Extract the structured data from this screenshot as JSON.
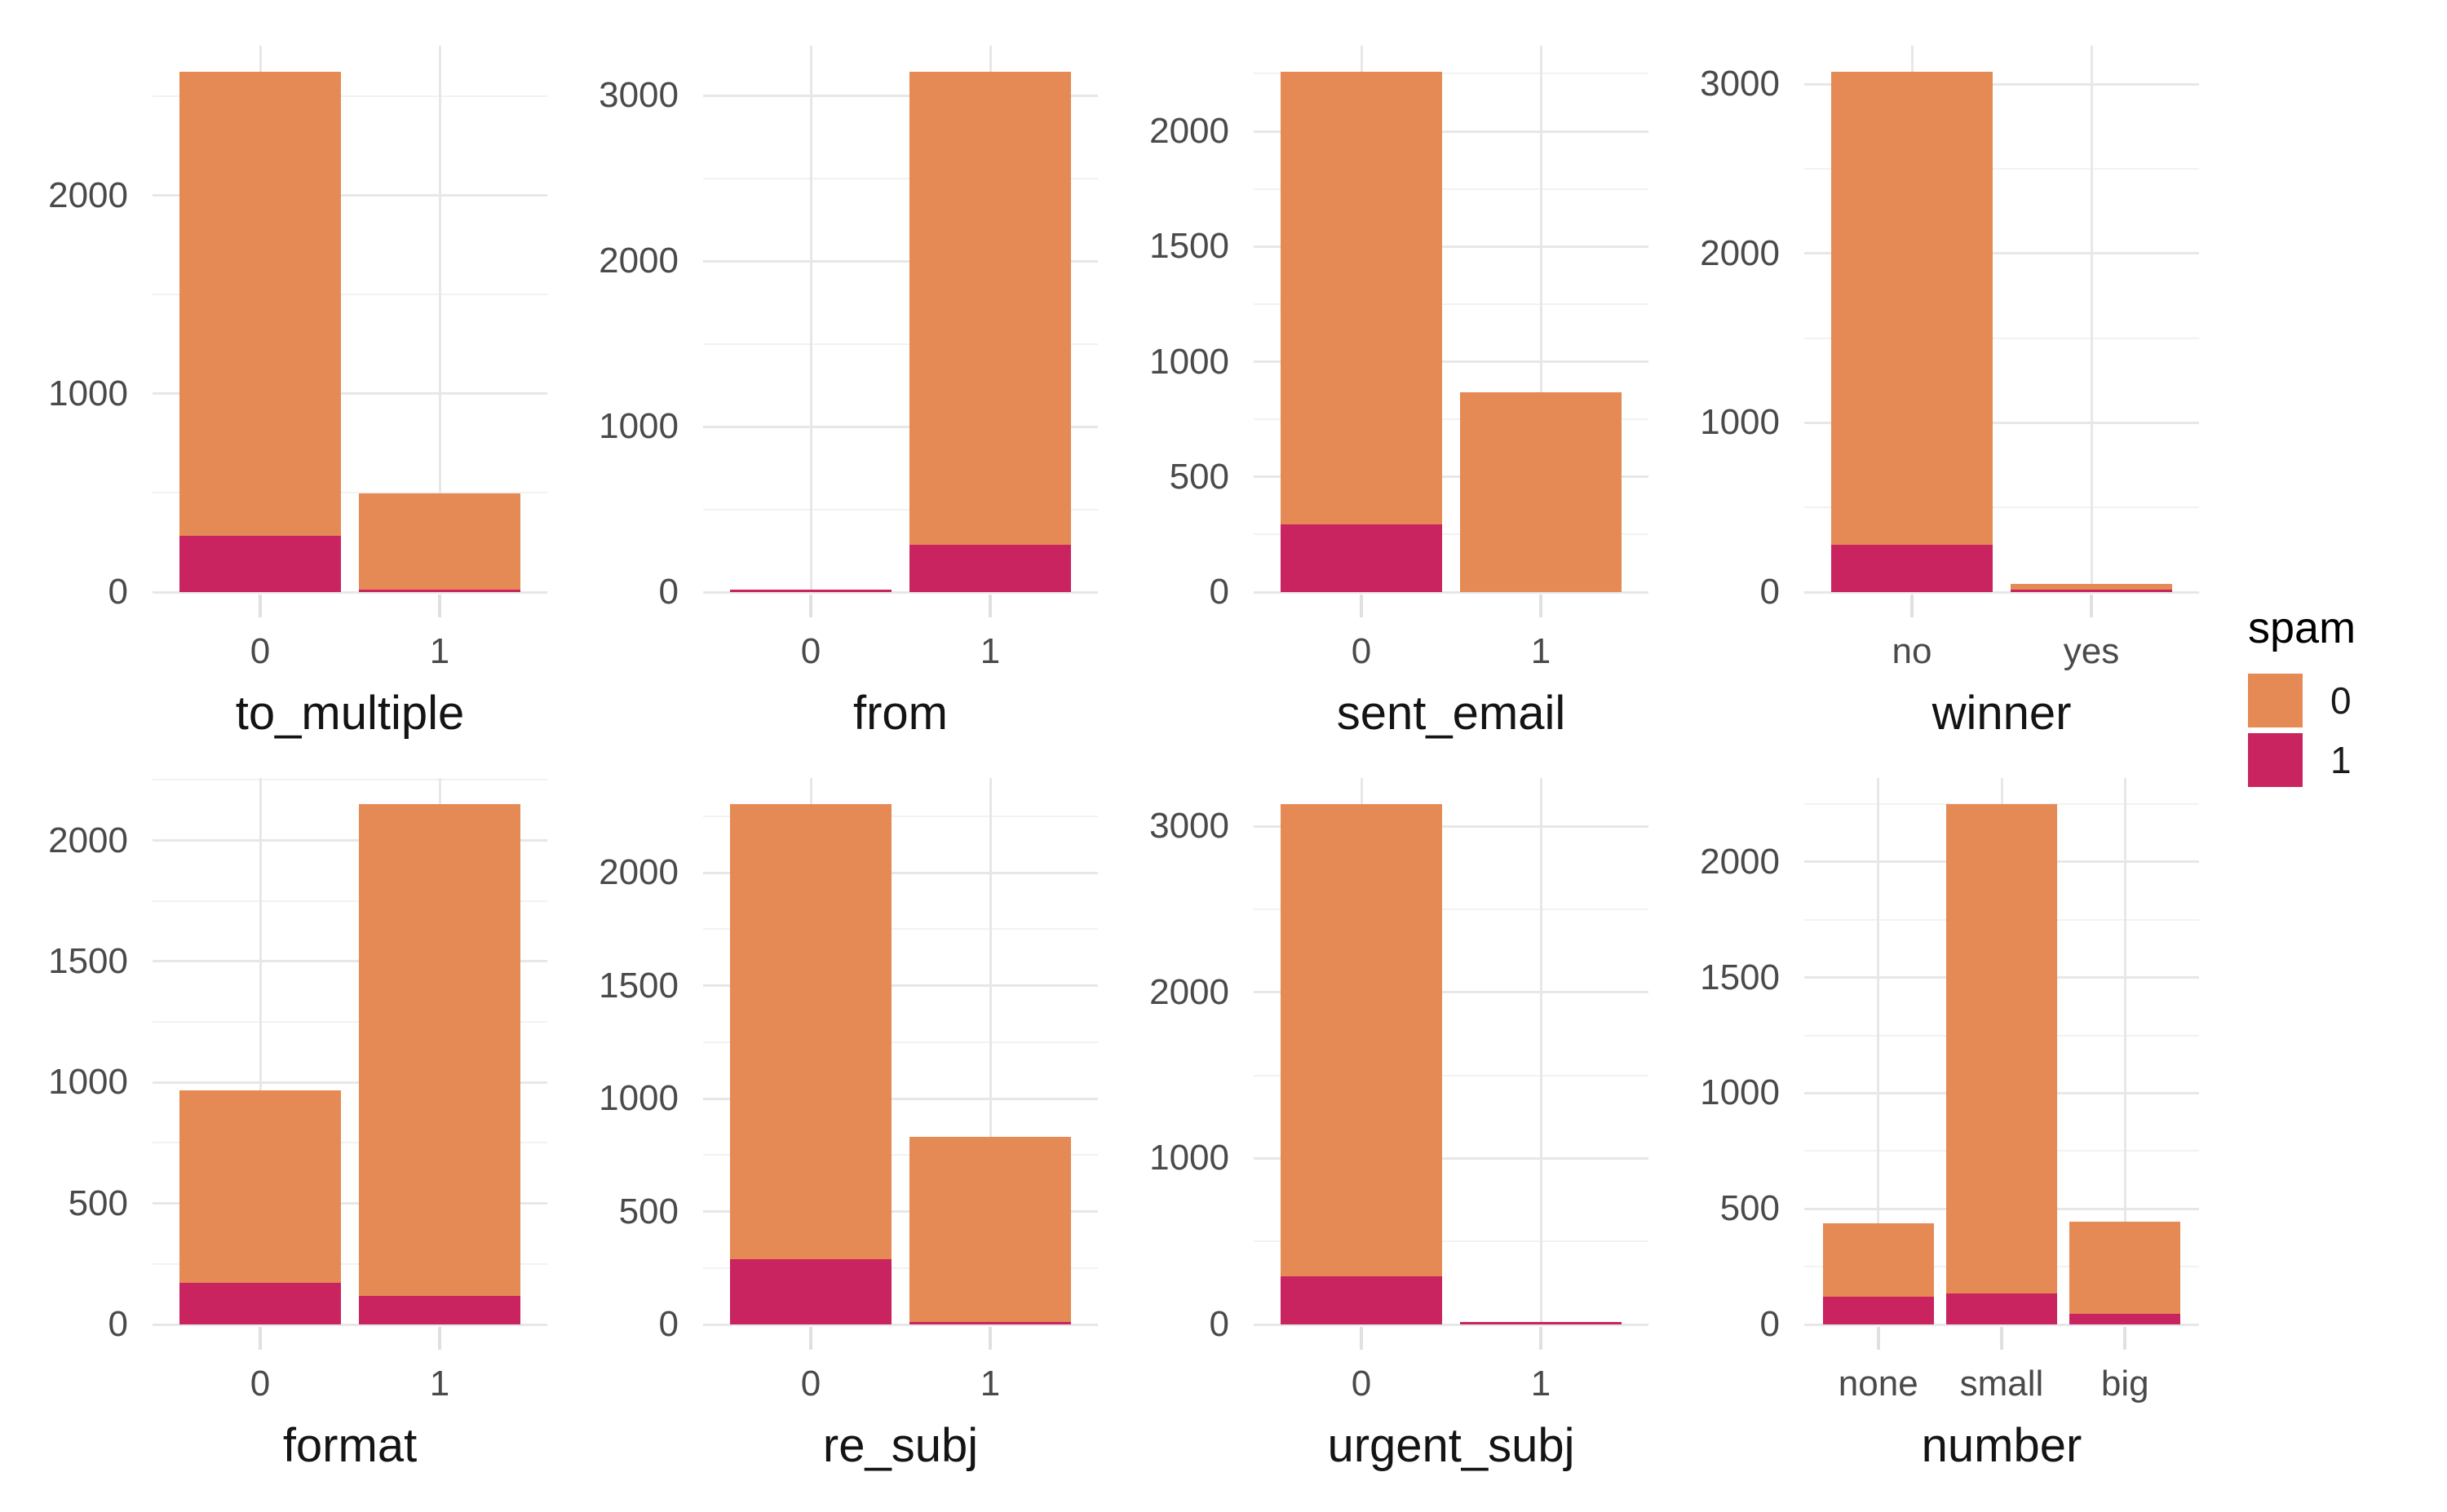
{
  "figure": {
    "background": "#ffffff",
    "grid_major_color": "#e7e7e7",
    "grid_minor_color": "#f2f2f2",
    "tick_mark_color": "#e0e0e0",
    "tick_label_color": "#4a4a4a",
    "axis_title_color": "#141414"
  },
  "colors": {
    "spam_0_orange": "#E58A55",
    "spam_1_magenta": "#C9245F"
  },
  "legend": {
    "title": "spam",
    "entries": [
      {
        "label": "0",
        "color": "#E58A55"
      },
      {
        "label": "1",
        "color": "#C9245F"
      }
    ]
  },
  "chart_data": [
    {
      "type": "bar",
      "stacked": true,
      "xlabel": "to_multiple",
      "ylabel": "",
      "categories": [
        "0",
        "1"
      ],
      "series": [
        {
          "name": "1",
          "values": [
            284,
            10
          ]
        },
        {
          "name": "0",
          "values": [
            2342,
            487
          ]
        }
      ],
      "totals": [
        2626,
        497
      ],
      "yticks": [
        0,
        1000,
        2000
      ],
      "tick_step": 1000,
      "ylim": [
        0,
        2757
      ],
      "grid": true
    },
    {
      "type": "bar",
      "stacked": true,
      "xlabel": "from",
      "ylabel": "",
      "categories": [
        "0",
        "1"
      ],
      "series": [
        {
          "name": "1",
          "values": [
            3,
            288
          ]
        },
        {
          "name": "0",
          "values": [
            0,
            2856
          ]
        }
      ],
      "totals": [
        3,
        3144
      ],
      "yticks": [
        0,
        1000,
        2000,
        3000
      ],
      "tick_step": 1000,
      "ylim": [
        0,
        3301
      ],
      "grid": true
    },
    {
      "type": "bar",
      "stacked": true,
      "xlabel": "sent_email",
      "ylabel": "",
      "categories": [
        "0",
        "1"
      ],
      "series": [
        {
          "name": "1",
          "values": [
            293,
            0
          ]
        },
        {
          "name": "0",
          "values": [
            1966,
            868
          ]
        }
      ],
      "totals": [
        2259,
        868
      ],
      "yticks": [
        0,
        500,
        1000,
        1500,
        2000
      ],
      "tick_step": 500,
      "ylim": [
        0,
        2372
      ],
      "grid": true
    },
    {
      "type": "bar",
      "stacked": true,
      "xlabel": "winner",
      "ylabel": "",
      "categories": [
        "no",
        "yes"
      ],
      "series": [
        {
          "name": "1",
          "values": [
            278,
            16
          ]
        },
        {
          "name": "0",
          "values": [
            2795,
            32
          ]
        }
      ],
      "totals": [
        3073,
        48
      ],
      "yticks": [
        0,
        1000,
        2000,
        3000
      ],
      "tick_step": 1000,
      "ylim": [
        0,
        3227
      ],
      "grid": true
    },
    {
      "type": "bar",
      "stacked": true,
      "xlabel": "format",
      "ylabel": "",
      "categories": [
        "0",
        "1"
      ],
      "series": [
        {
          "name": "1",
          "values": [
            172,
            117
          ]
        },
        {
          "name": "0",
          "values": [
            795,
            2033
          ]
        }
      ],
      "totals": [
        967,
        2150
      ],
      "yticks": [
        0,
        500,
        1000,
        1500,
        2000
      ],
      "tick_step": 500,
      "ylim": [
        0,
        2258
      ],
      "grid": true
    },
    {
      "type": "bar",
      "stacked": true,
      "xlabel": "re_subj",
      "ylabel": "",
      "categories": [
        "0",
        "1"
      ],
      "series": [
        {
          "name": "1",
          "values": [
            290,
            8
          ]
        },
        {
          "name": "0",
          "values": [
            2015,
            819
          ]
        }
      ],
      "totals": [
        2305,
        827
      ],
      "yticks": [
        0,
        500,
        1000,
        1500,
        2000
      ],
      "tick_step": 500,
      "ylim": [
        0,
        2420
      ],
      "grid": true
    },
    {
      "type": "bar",
      "stacked": true,
      "xlabel": "urgent_subj",
      "ylabel": "",
      "categories": [
        "0",
        "1"
      ],
      "series": [
        {
          "name": "1",
          "values": [
            290,
            6
          ]
        },
        {
          "name": "0",
          "values": [
            2843,
            0
          ]
        }
      ],
      "totals": [
        3133,
        6
      ],
      "yticks": [
        0,
        1000,
        2000,
        3000
      ],
      "tick_step": 1000,
      "ylim": [
        0,
        3290
      ],
      "grid": true
    },
    {
      "type": "bar",
      "stacked": true,
      "xlabel": "number",
      "ylabel": "",
      "categories": [
        "none",
        "small",
        "big"
      ],
      "series": [
        {
          "name": "1",
          "values": [
            120,
            133,
            45
          ]
        },
        {
          "name": "0",
          "values": [
            317,
            2117,
            400
          ]
        }
      ],
      "totals": [
        437,
        2250,
        445
      ],
      "yticks": [
        0,
        500,
        1000,
        1500,
        2000
      ],
      "tick_step": 500,
      "ylim": [
        0,
        2363
      ],
      "grid": true
    }
  ]
}
